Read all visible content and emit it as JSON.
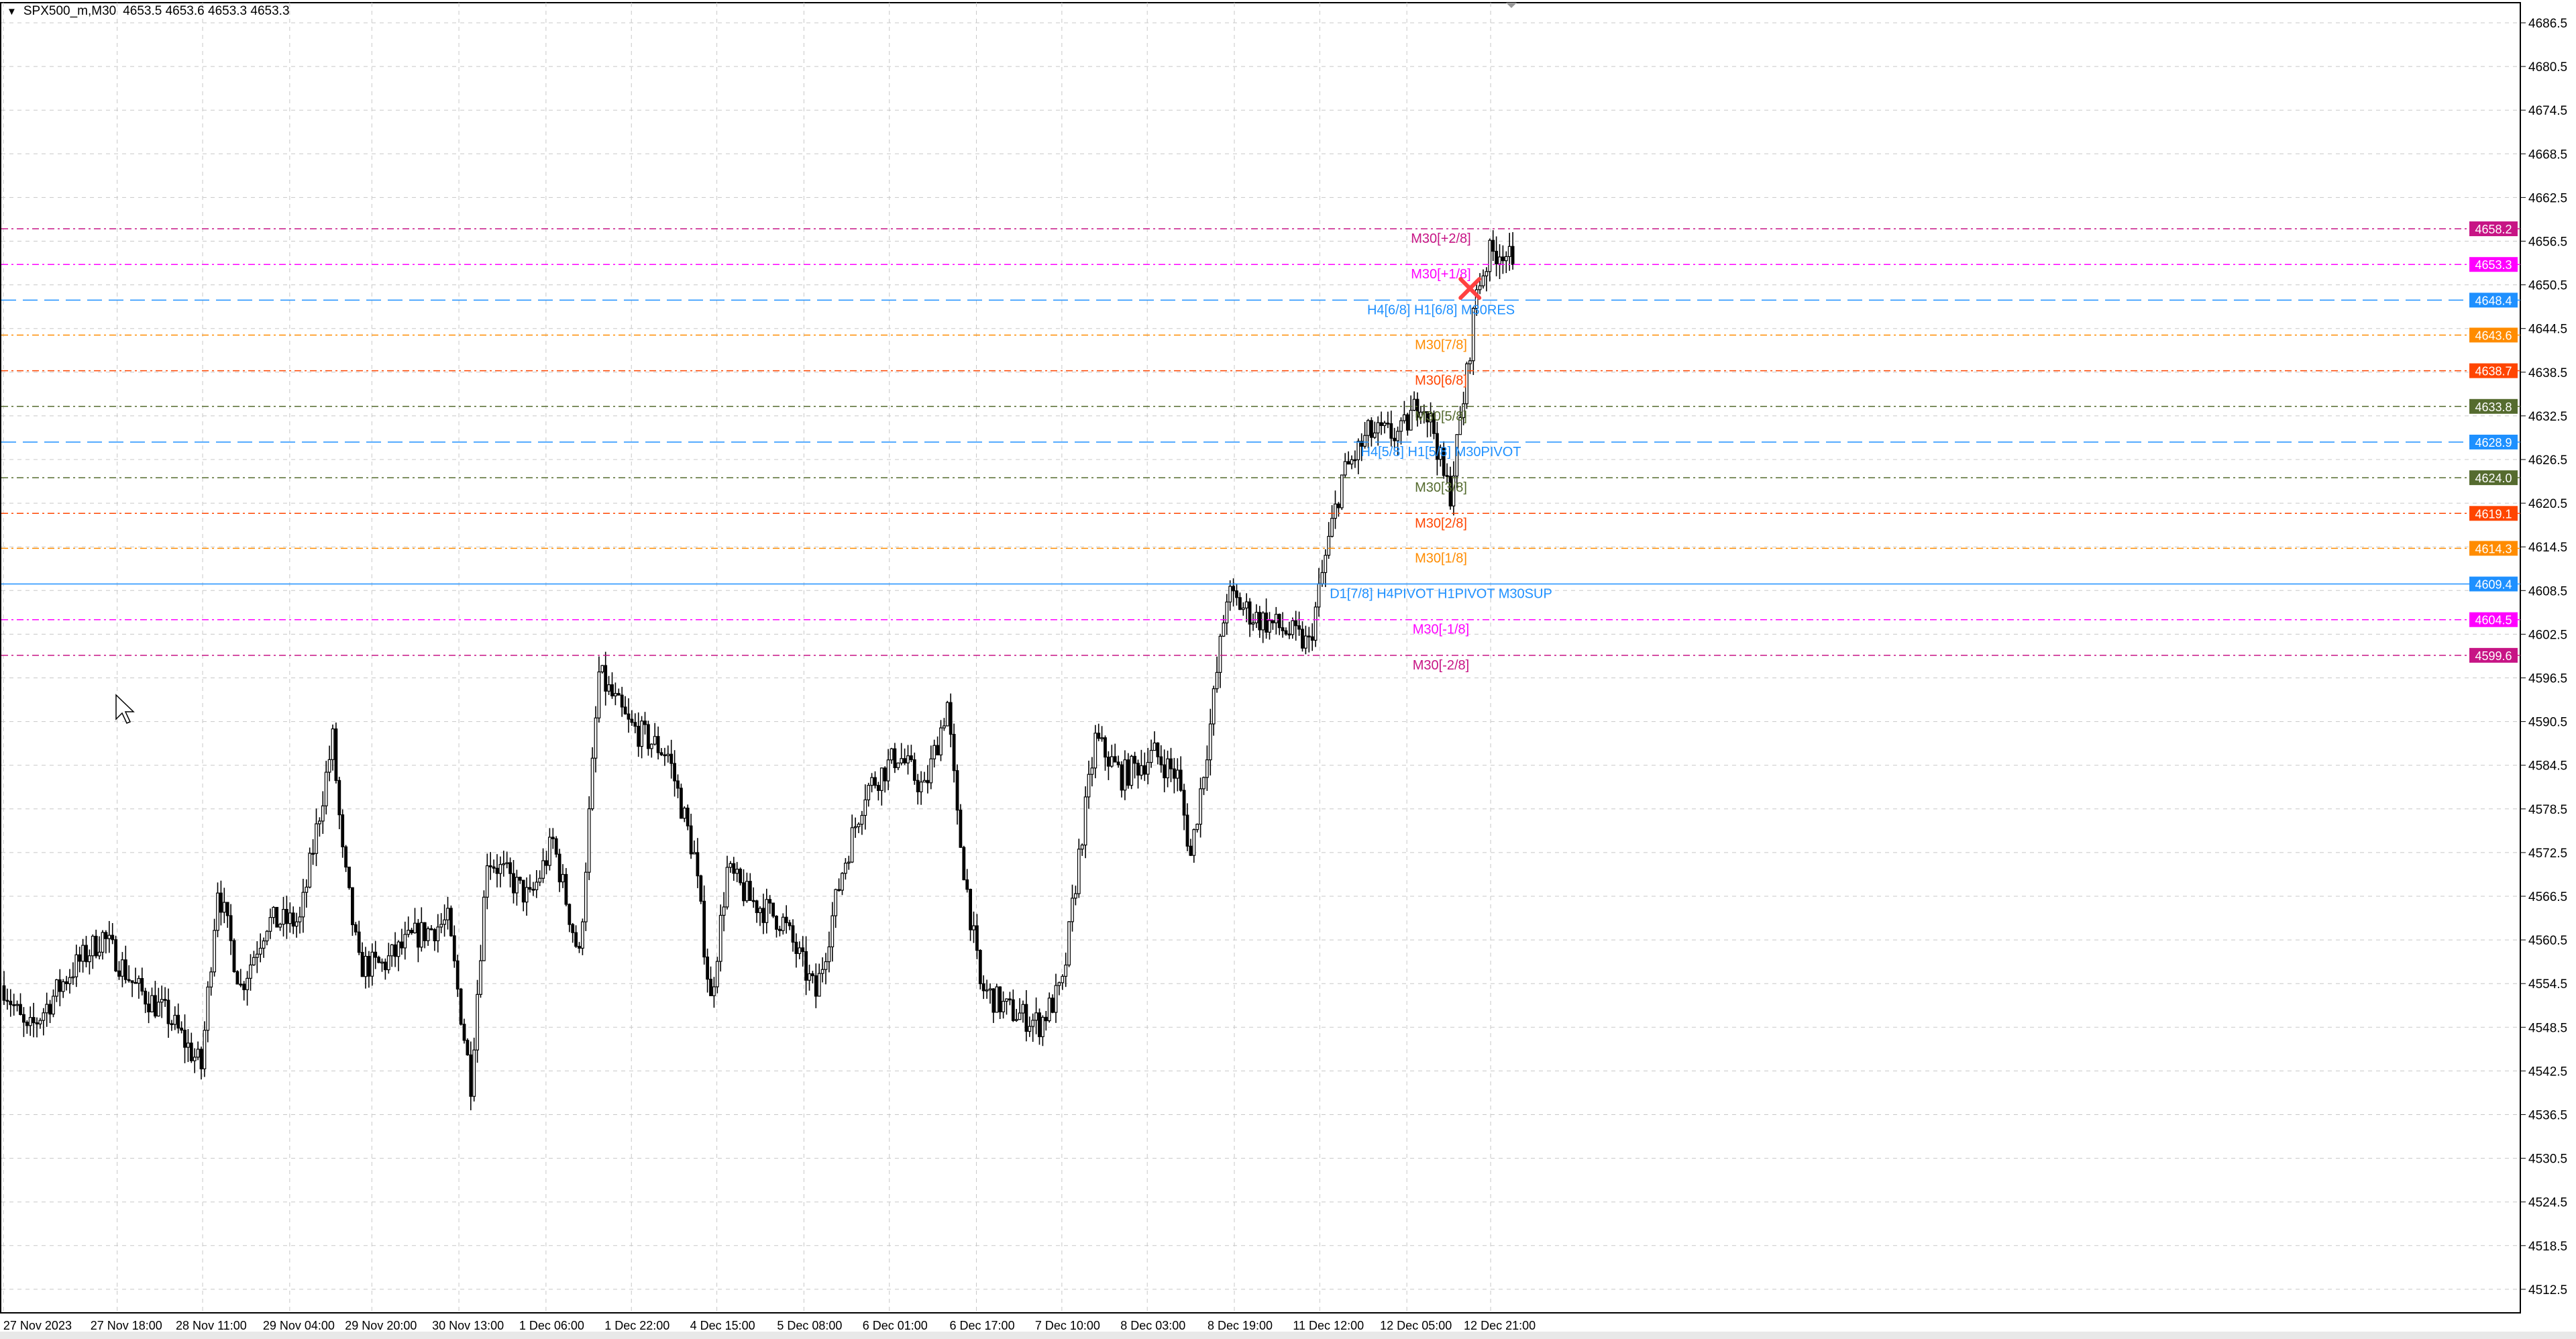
{
  "header": {
    "symbol": "SPX500_m,M30",
    "ohlc": "4653.5 4653.6 4653.3 4653.3",
    "collapse_icon": "triangle-down-icon"
  },
  "chart_data": {
    "type": "candlestick",
    "price_ticks": [
      "4686.5",
      "4680.5",
      "4674.5",
      "4668.5",
      "4662.5",
      "4656.5",
      "4650.5",
      "4644.5",
      "4638.5",
      "4632.5",
      "4626.5",
      "4620.5",
      "4614.5",
      "4608.5",
      "4602.5",
      "4596.5",
      "4590.5",
      "4584.5",
      "4578.5",
      "4572.5",
      "4566.5",
      "4560.5",
      "4554.5",
      "4548.5",
      "4542.5",
      "4536.5",
      "4530.5",
      "4524.5",
      "4518.5",
      "4512.5"
    ],
    "ylim": [
      4510,
      4690
    ],
    "time_labels": [
      "27 Nov 2023",
      "27 Nov 18:00",
      "28 Nov 11:00",
      "29 Nov 04:00",
      "29 Nov 20:00",
      "30 Nov 13:00",
      "1 Dec 06:00",
      "1 Dec 22:00",
      "4 Dec 15:00",
      "5 Dec 08:00",
      "6 Dec 01:00",
      "6 Dec 17:00",
      "7 Dec 10:00",
      "8 Dec 03:00",
      "8 Dec 19:00",
      "11 Dec 12:00",
      "12 Dec 05:00",
      "12 Dec 21:00"
    ],
    "grid": true,
    "close_path": [
      [
        0,
        4554.2
      ],
      [
        7,
        4547.5
      ],
      [
        20,
        4556
      ],
      [
        30,
        4561
      ],
      [
        40,
        4554
      ],
      [
        50,
        4550
      ],
      [
        60,
        4543
      ],
      [
        65,
        4568
      ],
      [
        72,
        4554
      ],
      [
        80,
        4563
      ],
      [
        90,
        4563
      ],
      [
        100,
        4588
      ],
      [
        103,
        4572
      ],
      [
        108,
        4557
      ],
      [
        115,
        4557
      ],
      [
        125,
        4561
      ],
      [
        135,
        4563
      ],
      [
        142,
        4541
      ],
      [
        147,
        4572
      ],
      [
        160,
        4566
      ],
      [
        167,
        4574
      ],
      [
        175,
        4558
      ],
      [
        181,
        4597
      ],
      [
        190,
        4590
      ],
      [
        202,
        4586
      ],
      [
        210,
        4572
      ],
      [
        215,
        4552
      ],
      [
        220,
        4570
      ],
      [
        227,
        4566
      ],
      [
        237,
        4563
      ],
      [
        247,
        4553
      ],
      [
        255,
        4570
      ],
      [
        262,
        4581
      ],
      [
        272,
        4586
      ],
      [
        280,
        4581
      ],
      [
        287,
        4593
      ],
      [
        290,
        4577
      ],
      [
        297,
        4554
      ],
      [
        305,
        4551
      ],
      [
        315,
        4549
      ],
      [
        322,
        4554
      ],
      [
        327,
        4572
      ],
      [
        332,
        4588
      ],
      [
        340,
        4583
      ],
      [
        350,
        4586
      ],
      [
        357,
        4583
      ],
      [
        361,
        4572
      ],
      [
        367,
        4590
      ],
      [
        372,
        4608
      ],
      [
        380,
        4605
      ],
      [
        390,
        4603
      ],
      [
        397,
        4601
      ],
      [
        402,
        4613
      ],
      [
        407,
        4624
      ],
      [
        415,
        4630
      ],
      [
        425,
        4630
      ],
      [
        431,
        4635
      ],
      [
        435,
        4630.5
      ],
      [
        438,
        4624
      ],
      [
        440,
        4622
      ],
      [
        445,
        4638
      ],
      [
        448,
        4650
      ],
      [
        452,
        4654.7
      ],
      [
        456,
        4655.4
      ],
      [
        459,
        4653.3
      ]
    ],
    "current_price": "4653.3",
    "levels": [
      {
        "price": 4658.2,
        "label": "M30[+2/8]",
        "tag": "4658.2",
        "color": "#c71585"
      },
      {
        "price": 4653.3,
        "label": "M30[+1/8]",
        "tag": "4653.3",
        "color": "#ff00ff"
      },
      {
        "price": 4648.4,
        "label": "H4[6/8] H1[6/8] M30RES",
        "tag": "4648.4",
        "color": "#1e90ff"
      },
      {
        "price": 4643.6,
        "label": "M30[7/8]",
        "tag": "4643.6",
        "color": "#ff8c00"
      },
      {
        "price": 4638.7,
        "label": "M30[6/8]",
        "tag": "4638.7",
        "color": "#ff4500"
      },
      {
        "price": 4633.8,
        "label": "M30[5/8]",
        "tag": "4633.8",
        "color": "#556b2f"
      },
      {
        "price": 4628.9,
        "label": "H4[5/8] H1[5/8] M30PIVOT",
        "tag": "4628.9",
        "color": "#1e90ff"
      },
      {
        "price": 4624.0,
        "label": "M30[3/8]",
        "tag": "4624.0",
        "color": "#556b2f"
      },
      {
        "price": 4619.1,
        "label": "M30[2/8]",
        "tag": "4619.1",
        "color": "#ff4500"
      },
      {
        "price": 4614.3,
        "label": "M30[1/8]",
        "tag": "4614.3",
        "color": "#ff8c00"
      },
      {
        "price": 4609.4,
        "label": "D1[7/8] H4PIVOT H1PIVOT M30SUP",
        "tag": "4609.4",
        "color": "#1e90ff"
      },
      {
        "price": 4604.5,
        "label": "M30[-1/8]",
        "tag": "4604.5",
        "color": "#ff00ff"
      },
      {
        "price": 4599.6,
        "label": "M30[-2/8]",
        "tag": "4599.6",
        "color": "#c71585"
      }
    ],
    "marker": {
      "type": "cross",
      "price": 4650,
      "color": "#ff4040"
    }
  }
}
